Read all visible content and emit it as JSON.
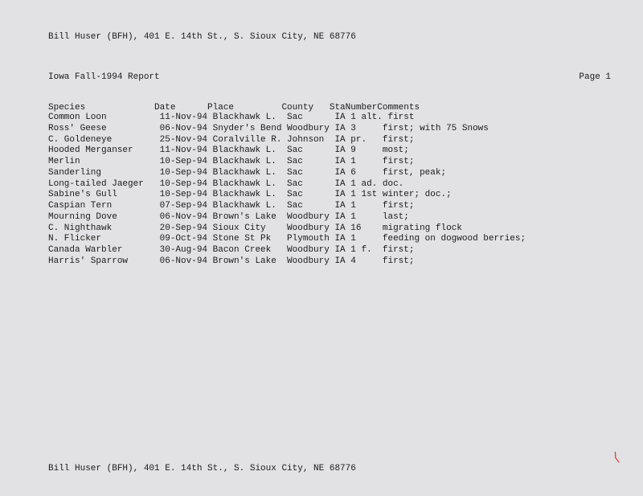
{
  "header": {
    "author_line": "Bill Huser (BFH), 401 E. 14th St., S. Sioux City, NE 68776"
  },
  "report": {
    "title_left": "Iowa   Fall-1994 Report",
    "title_right": "Page 1"
  },
  "columns": {
    "line": "Species             Date      Place         County   StaNumberComments"
  },
  "rows": [
    "Common Loon          11-Nov-94 Blackhawk L.  Sac      IA 1 alt. first",
    "Ross' Geese          06-Nov-94 Snyder's Bend Woodbury IA 3     first; with 75 Snows",
    "C. Goldeneye         25-Nov-94 Coralville R. Johnson  IA pr.   first;",
    "Hooded Merganser     11-Nov-94 Blackhawk L.  Sac      IA 9     most;",
    "Merlin               10-Sep-94 Blackhawk L.  Sac      IA 1     first;",
    "Sanderling           10-Sep-94 Blackhawk L.  Sac      IA 6     first, peak;",
    "Long-tailed Jaeger   10-Sep-94 Blackhawk L.  Sac      IA 1 ad. doc.",
    "Sabine's Gull        10-Sep-94 Blackhawk L.  Sac      IA 1 1st winter; doc.;",
    "Caspian Tern         07-Sep-94 Blackhawk L.  Sac      IA 1     first;",
    "Mourning Dove        06-Nov-94 Brown's Lake  Woodbury IA 1     last;",
    "C. Nighthawk         20-Sep-94 Sioux City    Woodbury IA 16    migrating flock",
    "N. Flicker           09-Oct-94 Stone St Pk   Plymouth IA 1     feeding on dogwood berries;",
    "Canada Warbler       30-Aug-94 Bacon Creek   Woodbury IA 1 f.  first;",
    "Harris' Sparrow      06-Nov-94 Brown's Lake  Woodbury IA 4     first;"
  ],
  "footer": {
    "author_line": "Bill Huser (BFH), 401 E. 14th St., S. Sioux City, NE 68776"
  },
  "mark": {
    "glyph": "⟨"
  }
}
